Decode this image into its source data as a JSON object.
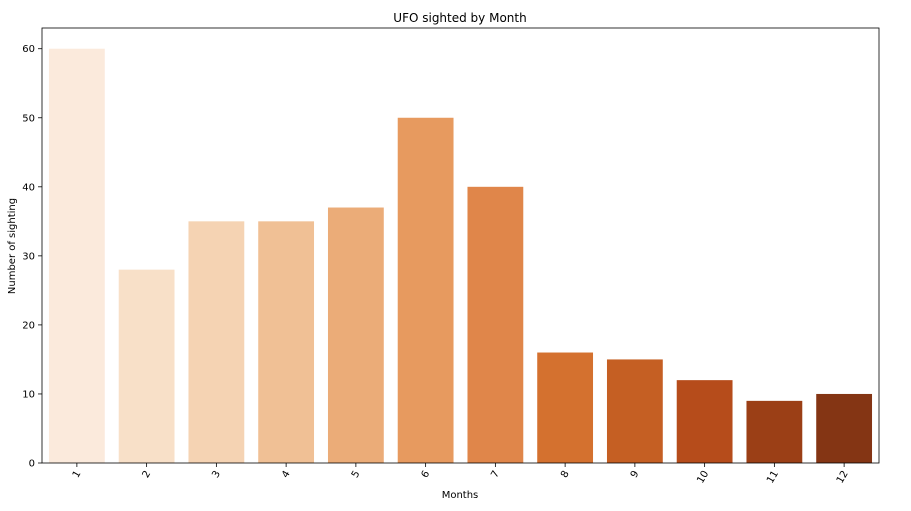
{
  "chart_data": {
    "type": "bar",
    "title": "UFO sighted by Month",
    "xlabel": "Months",
    "ylabel": "Number of sighting",
    "categories": [
      "1",
      "2",
      "3",
      "4",
      "5",
      "6",
      "7",
      "8",
      "9",
      "10",
      "11",
      "12"
    ],
    "values": [
      60,
      28,
      35,
      35,
      37,
      50,
      40,
      16,
      15,
      12,
      9,
      10
    ],
    "ylim": [
      0,
      63
    ],
    "yticks": [
      0,
      10,
      20,
      30,
      40,
      50,
      60
    ],
    "grid": false,
    "legend": "none",
    "palette": [
      "#fbeadc",
      "#f8e0c8",
      "#f5d3b3",
      "#f0c095",
      "#ebac78",
      "#e79a5f",
      "#e0864a",
      "#d4712f",
      "#c55f23",
      "#b64c1b",
      "#9b3f16",
      "#843514"
    ]
  }
}
